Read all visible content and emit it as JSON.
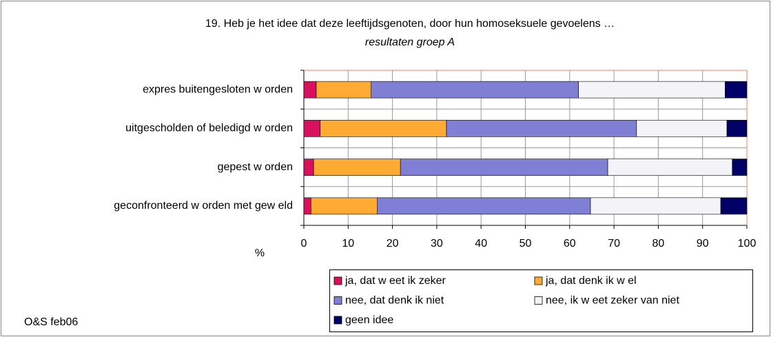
{
  "chart_data": {
    "type": "bar",
    "orientation": "horizontal",
    "stacked": true,
    "title": "19. Heb je het idee dat deze leeftijdsgenoten, door hun homoseksuele gevoelens …",
    "subtitle": "resultaten groep A",
    "xlabel": "%",
    "annotation": "O&S feb06",
    "categories": [
      "expres buitengesloten w orden",
      "uitgescholden of beledigd w orden",
      "gepest w orden",
      "geconfronteerd w orden met gew eld"
    ],
    "series": [
      {
        "name": "ja, dat w eet ik zeker",
        "color": "#d8105e",
        "values": [
          2.8,
          3.7,
          2.2,
          1.6
        ]
      },
      {
        "name": "ja, dat denk ik w el",
        "color": "#ffaa33",
        "values": [
          12.4,
          28.5,
          19.6,
          15.0
        ]
      },
      {
        "name": "nee, dat denk ik niet",
        "color": "#7f7fd6",
        "values": [
          46.8,
          42.9,
          46.8,
          48.1
        ]
      },
      {
        "name": "nee, ik w eet zeker van niet",
        "color": "#f4f4f8",
        "values": [
          33.1,
          20.4,
          28.1,
          29.4
        ]
      },
      {
        "name": "geen idee",
        "color": "#000066",
        "values": [
          4.9,
          4.5,
          3.3,
          5.9
        ]
      }
    ],
    "xlim": [
      0,
      100
    ],
    "xticks": [
      0,
      10,
      20,
      30,
      40,
      50,
      60,
      70,
      80,
      90,
      100
    ],
    "grid": true
  }
}
